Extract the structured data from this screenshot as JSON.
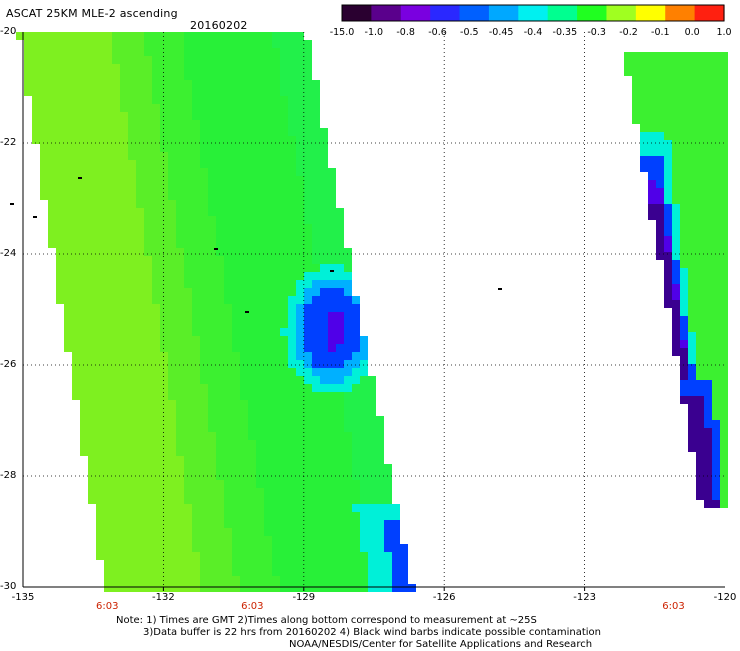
{
  "header": {
    "title": "ASCAT 25KM MLE-2 ascending",
    "date": "20160202"
  },
  "colorbar": {
    "tick_labels": [
      "-15.0",
      "-1.0",
      "-0.8",
      "-0.6",
      "-0.5",
      "-0.45",
      "-0.4",
      "-0.35",
      "-0.3",
      "-0.2",
      "-0.1",
      "0.0",
      "1.0"
    ],
    "colors": [
      "#2a0030",
      "#5a008c",
      "#7a00e0",
      "#2a28ff",
      "#0060ff",
      "#00a8ff",
      "#00f0f0",
      "#00ff90",
      "#20ff20",
      "#a0ff20",
      "#ffff00",
      "#ff8000",
      "#ff2010"
    ]
  },
  "map": {
    "lon_range": [
      -135,
      -120
    ],
    "lat_range": [
      -30,
      -20
    ],
    "y_tick_labels": [
      "-20",
      "-22",
      "-24",
      "-26",
      "-28",
      "-30"
    ],
    "x_tick_labels": [
      "-135",
      "-132",
      "-129",
      "-126",
      "-123",
      "-120"
    ],
    "time_labels": [
      {
        "text": "6:03",
        "lon": -133.2
      },
      {
        "text": "6:03",
        "lon": -130.1
      },
      {
        "text": "6:03",
        "lon": -121.1
      }
    ],
    "grid": true,
    "swath_colors": {
      "main": "#7ef020",
      "alt": "#5aee28",
      "mid": "#3cf030",
      "band": "#28f038",
      "edge": "#22f04a",
      "cyan": "#00f0d8",
      "lightblue": "#00b0ff",
      "blue": "#0040ff",
      "violet": "#5000e8",
      "purple": "#3a0090"
    }
  },
  "notes": [
    "Note: 1) Times are GMT 2)Times along bottom correspond to measurement at ~25S",
    "3)Data buffer is 22 hrs from 20160202 4) Black wind barbs indicate possible contamination",
    "NOAA/NESDIS/Center for Satellite Applications and Research"
  ]
}
